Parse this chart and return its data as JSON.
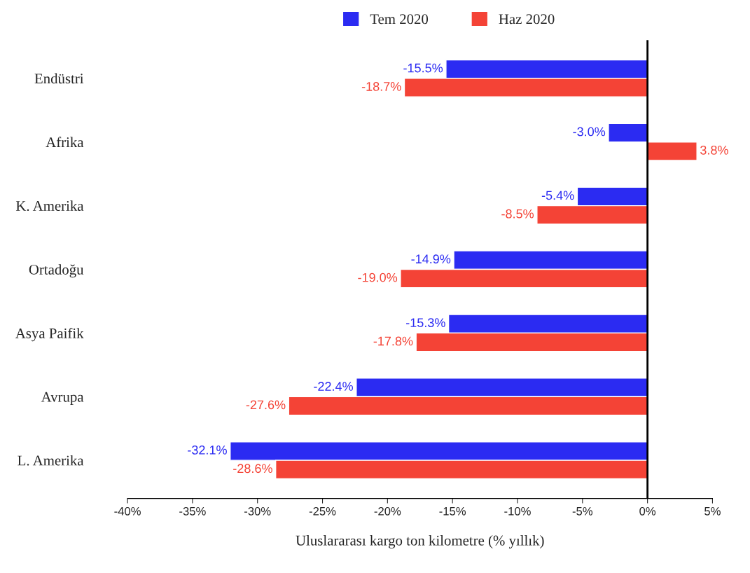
{
  "chart_data": {
    "type": "bar",
    "orientation": "horizontal",
    "xlabel": "Uluslararası kargo ton kilometre (% yıllık)",
    "categories": [
      "Endüstri",
      "Afrika",
      "K. Amerika",
      "Ortadoğu",
      "Asya Paifik",
      "Avrupa",
      "L. Amerika"
    ],
    "series": [
      {
        "name": "Tem 2020",
        "color": "#2b2bf2",
        "values": [
          -15.5,
          -3.0,
          -5.4,
          -14.9,
          -15.3,
          -22.4,
          -32.1
        ],
        "value_labels": [
          "-15.5%",
          "-3.0%",
          "-5.4%",
          "-14.9%",
          "-15.3%",
          "-22.4%",
          "-32.1%"
        ]
      },
      {
        "name": "Haz 2020",
        "color": "#f44336",
        "values": [
          -18.7,
          3.8,
          -8.5,
          -19.0,
          -17.8,
          -27.6,
          -28.6
        ],
        "value_labels": [
          "-18.7%",
          "3.8%",
          "-8.5%",
          "-19.0%",
          "-17.8%",
          "-27.6%",
          "-28.6%"
        ]
      }
    ],
    "xlim": [
      -40,
      5
    ],
    "xticks": [
      {
        "value": -40,
        "label": "-40%"
      },
      {
        "value": -35,
        "label": "-35%"
      },
      {
        "value": -30,
        "label": "-30%"
      },
      {
        "value": -25,
        "label": "-25%"
      },
      {
        "value": -20,
        "label": "-20%"
      },
      {
        "value": -15,
        "label": "-15%"
      },
      {
        "value": -10,
        "label": "-10%"
      },
      {
        "value": -5,
        "label": "-5%"
      },
      {
        "value": 0,
        "label": "0%"
      },
      {
        "value": 5,
        "label": "5%"
      }
    ],
    "ref_lines": [
      {
        "axis": "x",
        "value": 0,
        "color": "#000000"
      }
    ],
    "grid": false,
    "legend": "top"
  }
}
